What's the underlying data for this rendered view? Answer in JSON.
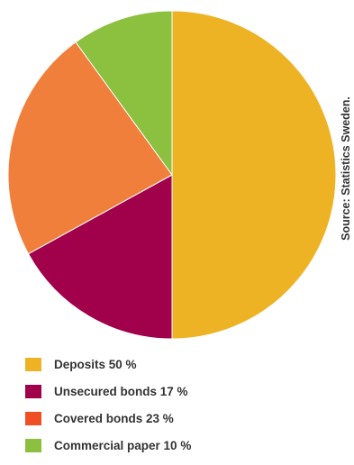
{
  "source_text": "Source: Statistics Sweden.",
  "chart_data": {
    "type": "pie",
    "start_angle_deg": 0,
    "direction": "clockwise",
    "slices": [
      {
        "label": "Deposits 50 %",
        "value": 50,
        "color": "#EEB324"
      },
      {
        "label": "Unsecured bonds 17 %",
        "value": 17,
        "color": "#A1004B"
      },
      {
        "label": "Covered bonds 23 %",
        "value": 23,
        "color": "#F07F3C"
      },
      {
        "label": "Commercial paper 10 %",
        "value": 10,
        "color": "#8CC03F"
      }
    ],
    "legend": {
      "placement": "bottom-left",
      "colors": [
        "#EEB324",
        "#A1004B",
        "#F04E23",
        "#8CC03F"
      ]
    }
  }
}
